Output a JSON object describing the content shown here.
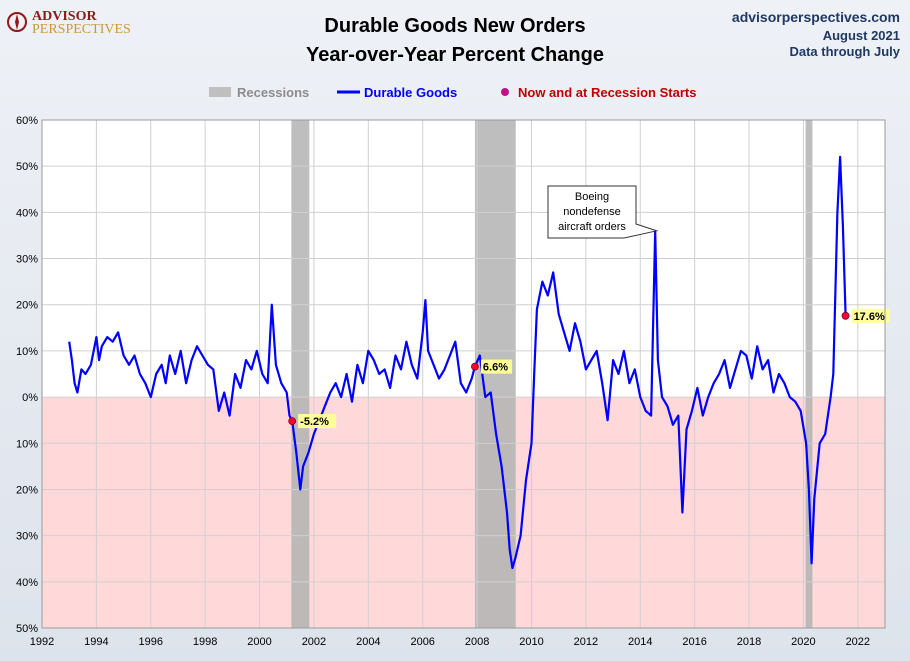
{
  "brand": {
    "logo_line1": "ADVISOR",
    "logo_line2": "PERSPECTIVES",
    "site": "advisorperspectives.com",
    "date": "August 2021",
    "data_through": "Data through July"
  },
  "chart_data": {
    "type": "line",
    "title": "Durable Goods New Orders",
    "subtitle": "Year-over-Year Percent Change",
    "xlabel": "",
    "ylabel": "",
    "xlim": [
      1992,
      2023
    ],
    "ylim": [
      -50,
      60
    ],
    "y_ticks": [
      60,
      50,
      40,
      30,
      20,
      10,
      0,
      -10,
      -20,
      -30,
      -40,
      -50
    ],
    "y_tick_labels": [
      "60%",
      "50%",
      "40%",
      "30%",
      "20%",
      "10%",
      "0%",
      "10%",
      "20%",
      "30%",
      "40%",
      "50%"
    ],
    "x_ticks": [
      1992,
      1994,
      1996,
      1998,
      2000,
      2002,
      2004,
      2006,
      2008,
      2010,
      2012,
      2014,
      2016,
      2018,
      2020,
      2022
    ],
    "x_tick_labels": [
      "1992",
      "1994",
      "1996",
      "1998",
      "2000",
      "2002",
      "2004",
      "2006",
      "2008",
      "2010",
      "2012",
      "2014",
      "2016",
      "2018",
      "2020",
      "2022"
    ],
    "grid": true,
    "negative_shading": true,
    "colors": {
      "line": "#0000ff",
      "recession": "#b3b3b3",
      "negative_band": "#ffd9d9",
      "marker": "#ff0033",
      "label_bg": "#ffff99",
      "legend_marker_text": "#c00000"
    },
    "legend": {
      "position": "top",
      "recessions": "Recessions",
      "series": "Durable Goods",
      "markers": "Now and at Recession Starts"
    },
    "recessions": [
      {
        "start": 2001.17,
        "end": 2001.83
      },
      {
        "start": 2007.92,
        "end": 2009.42
      },
      {
        "start": 2020.08,
        "end": 2020.33
      }
    ],
    "series": [
      {
        "name": "Durable Goods",
        "x": [
          1993.0,
          1993.1,
          1993.2,
          1993.3,
          1993.45,
          1993.6,
          1993.8,
          1994.0,
          1994.1,
          1994.2,
          1994.4,
          1994.6,
          1994.8,
          1995.0,
          1995.2,
          1995.4,
          1995.6,
          1995.8,
          1996.0,
          1996.2,
          1996.4,
          1996.55,
          1996.7,
          1996.9,
          1997.1,
          1997.3,
          1997.5,
          1997.7,
          1997.9,
          1998.1,
          1998.3,
          1998.5,
          1998.7,
          1998.9,
          1999.1,
          1999.3,
          1999.5,
          1999.7,
          1999.9,
          2000.1,
          2000.3,
          2000.45,
          2000.6,
          2000.8,
          2001.0,
          2001.1,
          2001.2,
          2001.35,
          2001.5,
          2001.6,
          2001.8,
          2002.0,
          2002.2,
          2002.4,
          2002.6,
          2002.8,
          2003.0,
          2003.2,
          2003.4,
          2003.6,
          2003.8,
          2004.0,
          2004.2,
          2004.4,
          2004.6,
          2004.8,
          2005.0,
          2005.2,
          2005.4,
          2005.6,
          2005.8,
          2006.0,
          2006.1,
          2006.2,
          2006.4,
          2006.6,
          2006.8,
          2007.0,
          2007.2,
          2007.4,
          2007.6,
          2007.8,
          2007.92,
          2008.1,
          2008.3,
          2008.5,
          2008.7,
          2008.9,
          2009.1,
          2009.2,
          2009.3,
          2009.4,
          2009.6,
          2009.8,
          2010.0,
          2010.1,
          2010.2,
          2010.4,
          2010.6,
          2010.8,
          2011.0,
          2011.2,
          2011.4,
          2011.6,
          2011.8,
          2012.0,
          2012.2,
          2012.4,
          2012.6,
          2012.8,
          2013.0,
          2013.2,
          2013.4,
          2013.6,
          2013.8,
          2014.0,
          2014.2,
          2014.4,
          2014.55,
          2014.65,
          2014.8,
          2015.0,
          2015.2,
          2015.4,
          2015.55,
          2015.7,
          2015.9,
          2016.1,
          2016.3,
          2016.5,
          2016.7,
          2016.9,
          2017.1,
          2017.3,
          2017.5,
          2017.7,
          2017.9,
          2018.1,
          2018.3,
          2018.5,
          2018.7,
          2018.9,
          2019.1,
          2019.3,
          2019.5,
          2019.7,
          2019.9,
          2020.1,
          2020.2,
          2020.3,
          2020.4,
          2020.6,
          2020.8,
          2021.0,
          2021.1,
          2021.25,
          2021.35,
          2021.45,
          2021.55
        ],
        "values": [
          12.0,
          8.0,
          3.0,
          1.0,
          6.0,
          5.0,
          7.0,
          13.0,
          8.0,
          11.0,
          13.0,
          12.0,
          14.0,
          9.0,
          7.0,
          9.0,
          5.0,
          3.0,
          0.0,
          5.0,
          7.0,
          3.0,
          9.0,
          5.0,
          10.0,
          3.0,
          8.0,
          11.0,
          9.0,
          7.0,
          6.0,
          -3.0,
          1.0,
          -4.0,
          5.0,
          2.0,
          8.0,
          6.0,
          10.0,
          5.0,
          3.0,
          20.0,
          7.0,
          3.0,
          1.0,
          -4.0,
          -5.2,
          -12.0,
          -20.0,
          -15.0,
          -12.0,
          -8.0,
          -5.0,
          -2.0,
          1.0,
          3.0,
          0.0,
          5.0,
          -1.0,
          7.0,
          3.0,
          10.0,
          8.0,
          5.0,
          6.0,
          2.0,
          9.0,
          6.0,
          12.0,
          7.0,
          4.0,
          14.0,
          21.0,
          10.0,
          7.0,
          4.0,
          6.0,
          9.0,
          12.0,
          3.0,
          1.0,
          4.0,
          6.6,
          9.0,
          0.0,
          1.0,
          -8.0,
          -15.0,
          -25.0,
          -33.0,
          -37.0,
          -35.0,
          -30.0,
          -18.0,
          -10.0,
          5.0,
          19.0,
          25.0,
          22.0,
          27.0,
          18.0,
          14.0,
          10.0,
          16.0,
          12.0,
          6.0,
          8.0,
          10.0,
          3.0,
          -5.0,
          8.0,
          5.0,
          10.0,
          3.0,
          6.0,
          0.0,
          -3.0,
          -4.0,
          36.0,
          8.0,
          0.0,
          -2.0,
          -6.0,
          -4.0,
          -25.0,
          -7.0,
          -3.0,
          2.0,
          -4.0,
          0.0,
          3.0,
          5.0,
          8.0,
          2.0,
          6.0,
          10.0,
          9.0,
          4.0,
          11.0,
          6.0,
          8.0,
          1.0,
          5.0,
          3.0,
          0.0,
          -1.0,
          -3.0,
          -10.0,
          -20.0,
          -36.0,
          -22.0,
          -10.0,
          -8.0,
          0.0,
          5.0,
          40.0,
          52.0,
          37.0,
          17.6
        ]
      }
    ],
    "markers": [
      {
        "x": 2001.2,
        "y": -5.2,
        "label": "-5.2%"
      },
      {
        "x": 2007.92,
        "y": 6.6,
        "label": "6.6%"
      },
      {
        "x": 2021.55,
        "y": 17.6,
        "label": "17.6%"
      }
    ],
    "annotations": [
      {
        "lines": [
          "Boeing",
          "nondefense",
          "aircraft orders"
        ],
        "x": 2014.6,
        "y": 36.0
      }
    ]
  }
}
